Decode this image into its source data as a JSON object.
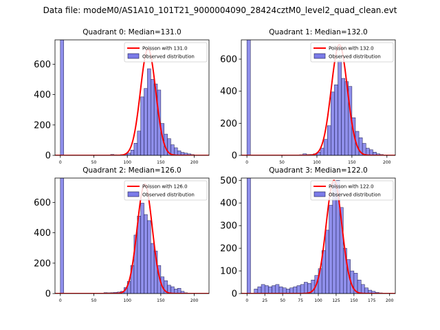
{
  "figure_title": "Data file: modeM0/AS1A10_101T21_9000004090_28424cztM0_level2_quad_clean.evt",
  "colors": {
    "bar_fill": "#7b7be8",
    "bar_edge": "#1a1a4a",
    "poisson_line": "#ff0000"
  },
  "chart_data": [
    {
      "type": "bar",
      "title": "Quadrant 0: Median=131.0",
      "xlim": [
        -8,
        222
      ],
      "ylim": [
        0,
        760
      ],
      "xticks": [
        0,
        50,
        100,
        150,
        200
      ],
      "yticks": [
        0,
        200,
        400,
        600
      ],
      "legend": [
        "Poisson with 131.0",
        "Observed distribution"
      ],
      "legend_loc": "upper right",
      "bin_width": 5,
      "bins": [
        [
          0,
          760
        ],
        [
          70,
          3
        ],
        [
          75,
          6
        ],
        [
          80,
          4
        ],
        [
          85,
          3
        ],
        [
          90,
          5
        ],
        [
          95,
          8
        ],
        [
          100,
          15
        ],
        [
          105,
          35
        ],
        [
          110,
          80
        ],
        [
          115,
          160
        ],
        [
          120,
          385
        ],
        [
          125,
          440
        ],
        [
          130,
          570
        ],
        [
          135,
          500
        ],
        [
          140,
          470
        ],
        [
          145,
          430
        ],
        [
          150,
          210
        ],
        [
          155,
          140
        ],
        [
          160,
          110
        ],
        [
          165,
          70
        ],
        [
          170,
          50
        ],
        [
          175,
          30
        ],
        [
          180,
          20
        ],
        [
          185,
          15
        ],
        [
          190,
          10
        ],
        [
          195,
          5
        ]
      ],
      "poisson_mean": 131.0,
      "poisson_peak": 700
    },
    {
      "type": "bar",
      "title": "Quadrant 1: Median=132.0",
      "xlim": [
        -8,
        212
      ],
      "ylim": [
        0,
        720
      ],
      "xticks": [
        0,
        50,
        100,
        150,
        200
      ],
      "yticks": [
        0,
        200,
        400,
        600
      ],
      "legend": [
        "Poisson with 132.0",
        "Observed distribution"
      ],
      "legend_loc": "upper right",
      "bin_width": 5,
      "bins": [
        [
          0,
          720
        ],
        [
          75,
          4
        ],
        [
          80,
          10
        ],
        [
          85,
          5
        ],
        [
          90,
          6
        ],
        [
          95,
          10
        ],
        [
          100,
          20
        ],
        [
          105,
          45
        ],
        [
          110,
          100
        ],
        [
          115,
          185
        ],
        [
          120,
          395
        ],
        [
          125,
          440
        ],
        [
          130,
          590
        ],
        [
          135,
          480
        ],
        [
          140,
          460
        ],
        [
          145,
          430
        ],
        [
          150,
          235
        ],
        [
          155,
          150
        ],
        [
          160,
          110
        ],
        [
          165,
          75
        ],
        [
          170,
          45
        ],
        [
          175,
          35
        ],
        [
          180,
          20
        ],
        [
          185,
          10
        ],
        [
          190,
          5
        ]
      ],
      "poisson_mean": 132.0,
      "poisson_peak": 690
    },
    {
      "type": "bar",
      "title": "Quadrant 2: Median=126.0",
      "xlim": [
        -8,
        222
      ],
      "ylim": [
        0,
        760
      ],
      "xticks": [
        0,
        50,
        100,
        150,
        200
      ],
      "yticks": [
        0,
        200,
        400,
        600
      ],
      "legend": [
        "Poisson with 126.0",
        "Observed distribution"
      ],
      "legend_loc": "upper right",
      "bin_width": 5,
      "bins": [
        [
          0,
          760
        ],
        [
          65,
          6
        ],
        [
          70,
          5
        ],
        [
          75,
          6
        ],
        [
          80,
          8
        ],
        [
          85,
          10
        ],
        [
          90,
          15
        ],
        [
          95,
          40
        ],
        [
          100,
          80
        ],
        [
          105,
          185
        ],
        [
          110,
          385
        ],
        [
          115,
          510
        ],
        [
          120,
          595
        ],
        [
          125,
          520
        ],
        [
          130,
          480
        ],
        [
          135,
          330
        ],
        [
          140,
          280
        ],
        [
          145,
          185
        ],
        [
          150,
          110
        ],
        [
          155,
          85
        ],
        [
          160,
          55
        ],
        [
          165,
          45
        ],
        [
          170,
          30
        ],
        [
          175,
          35
        ],
        [
          180,
          15
        ],
        [
          185,
          5
        ]
      ],
      "poisson_mean": 126.0,
      "poisson_peak": 720
    },
    {
      "type": "bar",
      "title": "Quadrant 3: Median=122.0",
      "xlim": [
        -8,
        208
      ],
      "ylim": [
        0,
        510
      ],
      "xticks": [
        0,
        25,
        50,
        75,
        100,
        125,
        150,
        175,
        200
      ],
      "yticks": [
        0,
        100,
        200,
        300,
        400,
        500
      ],
      "legend": [
        "Poisson with 122.0",
        "Observed distribution"
      ],
      "legend_loc": "upper right",
      "bin_width": 5,
      "bins": [
        [
          0,
          510
        ],
        [
          10,
          20
        ],
        [
          15,
          30
        ],
        [
          20,
          40
        ],
        [
          25,
          35
        ],
        [
          30,
          30
        ],
        [
          35,
          35
        ],
        [
          40,
          40
        ],
        [
          45,
          30
        ],
        [
          50,
          25
        ],
        [
          55,
          20
        ],
        [
          60,
          25
        ],
        [
          65,
          30
        ],
        [
          70,
          35
        ],
        [
          75,
          40
        ],
        [
          80,
          50
        ],
        [
          85,
          45
        ],
        [
          90,
          60
        ],
        [
          95,
          80
        ],
        [
          100,
          110
        ],
        [
          105,
          190
        ],
        [
          110,
          280
        ],
        [
          115,
          390
        ],
        [
          120,
          490
        ],
        [
          125,
          500
        ],
        [
          130,
          380
        ],
        [
          135,
          200
        ],
        [
          140,
          150
        ],
        [
          145,
          100
        ],
        [
          150,
          90
        ],
        [
          155,
          60
        ],
        [
          160,
          40
        ],
        [
          165,
          25
        ],
        [
          170,
          15
        ],
        [
          175,
          10
        ],
        [
          180,
          5
        ],
        [
          185,
          3
        ]
      ],
      "poisson_mean": 122.0,
      "poisson_peak": 500
    }
  ]
}
